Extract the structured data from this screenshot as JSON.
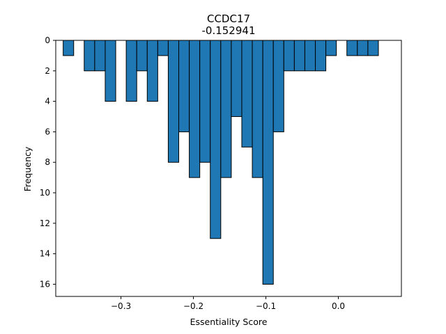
{
  "chart_data": {
    "type": "bar",
    "title": "CCDC17",
    "subtitle": "-0.152941",
    "xlabel": "Essentiality Score",
    "ylabel": "Frequency",
    "xlim": [
      -0.39,
      0.087
    ],
    "ylim": [
      0,
      16.8
    ],
    "y_inverted": true,
    "bar_width": 0.0145,
    "bar_color": "#1f77b4",
    "edge_color": "#000000",
    "x_ticks": [
      -0.3,
      -0.2,
      -0.1,
      0.0
    ],
    "x_tick_labels": [
      "−0.3",
      "−0.2",
      "−0.1",
      "0.0"
    ],
    "y_ticks": [
      0,
      2,
      4,
      6,
      8,
      10,
      12,
      14,
      16
    ],
    "y_tick_labels": [
      "0",
      "2",
      "4",
      "6",
      "8",
      "10",
      "12",
      "14",
      "16"
    ],
    "bins": [
      {
        "x": -0.3725,
        "count": 1
      },
      {
        "x": -0.3435,
        "count": 2
      },
      {
        "x": -0.329,
        "count": 2
      },
      {
        "x": -0.3145,
        "count": 4
      },
      {
        "x": -0.2855,
        "count": 4
      },
      {
        "x": -0.271,
        "count": 2
      },
      {
        "x": -0.2565,
        "count": 4
      },
      {
        "x": -0.242,
        "count": 1
      },
      {
        "x": -0.2275,
        "count": 8
      },
      {
        "x": -0.213,
        "count": 6
      },
      {
        "x": -0.1985,
        "count": 9
      },
      {
        "x": -0.184,
        "count": 8
      },
      {
        "x": -0.1695,
        "count": 13
      },
      {
        "x": -0.155,
        "count": 9
      },
      {
        "x": -0.1405,
        "count": 5
      },
      {
        "x": -0.126,
        "count": 7
      },
      {
        "x": -0.1115,
        "count": 9
      },
      {
        "x": -0.097,
        "count": 16
      },
      {
        "x": -0.0825,
        "count": 6
      },
      {
        "x": -0.068,
        "count": 2
      },
      {
        "x": -0.0535,
        "count": 2
      },
      {
        "x": -0.039,
        "count": 2
      },
      {
        "x": -0.0245,
        "count": 2
      },
      {
        "x": -0.01,
        "count": 1
      },
      {
        "x": 0.019,
        "count": 1
      },
      {
        "x": 0.0335,
        "count": 1
      },
      {
        "x": 0.048,
        "count": 1
      }
    ]
  }
}
